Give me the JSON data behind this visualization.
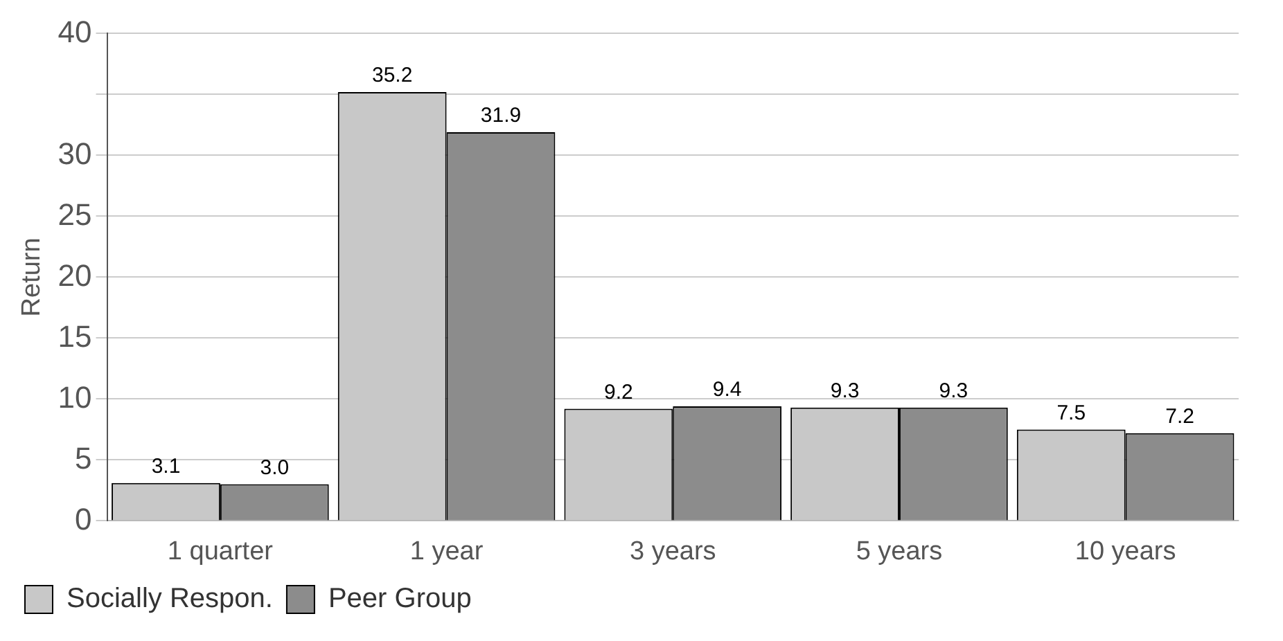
{
  "chart_data": {
    "type": "bar",
    "ylabel": "Return",
    "categories": [
      "1 quarter",
      "1 year",
      "3 years",
      "5 years",
      "10 years"
    ],
    "series": [
      {
        "name": "Socially Respon.",
        "color": "#c8c8c8",
        "values": [
          3.1,
          35.2,
          9.2,
          9.3,
          7.5
        ],
        "value_labels": [
          "3.1",
          "35.2",
          "9.2",
          "9.3",
          "7.5"
        ]
      },
      {
        "name": "Peer Group",
        "color": "#8c8c8c",
        "values": [
          3.0,
          31.9,
          9.4,
          9.3,
          7.2
        ],
        "value_labels": [
          "3.0",
          "31.9",
          "9.4",
          "9.3",
          "7.2"
        ]
      }
    ],
    "ylim": [
      0,
      40
    ],
    "yticks": [
      0,
      5,
      10,
      15,
      20,
      25,
      30,
      {
        "value": 35,
        "label": null
      },
      40
    ],
    "grid": "y",
    "legend": "bottom"
  }
}
